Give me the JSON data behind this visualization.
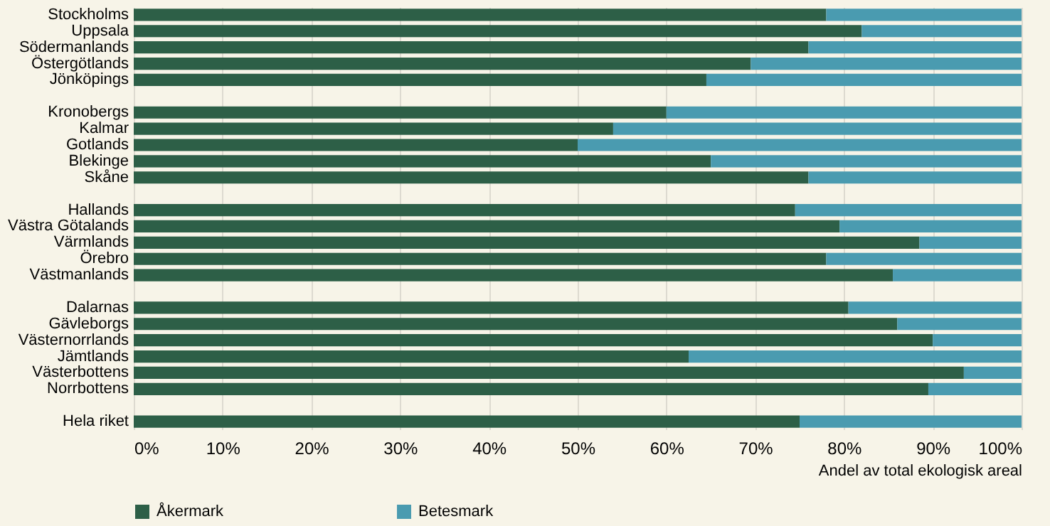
{
  "chart_data": {
    "type": "bar",
    "orientation": "horizontal",
    "stacked": true,
    "xlabel": "Andel av total ekologisk areal",
    "categories": [
      "Stockholms",
      "Uppsala",
      "Södermanlands",
      "Östergötlands",
      "Jönköpings",
      null,
      "Kronobergs",
      "Kalmar",
      "Gotlands",
      "Blekinge",
      "Skåne",
      null,
      "Hallands",
      "Västra Götalands",
      "Värmlands",
      "Örebro",
      "Västmanlands",
      null,
      "Dalarnas",
      "Gävleborgs",
      "Västernorrlands",
      "Jämtlands",
      "Västerbottens",
      "Norrbottens",
      null,
      "Hela riket"
    ],
    "series": [
      {
        "name": "Åkermark",
        "color": "#2d5f47",
        "values": [
          78,
          82,
          76,
          69.5,
          64.5,
          null,
          60,
          54,
          50,
          65,
          76,
          null,
          74.5,
          79.5,
          88.5,
          78,
          85.5,
          null,
          80.5,
          86,
          90,
          62.5,
          93.5,
          89.5,
          null,
          75
        ]
      },
      {
        "name": "Betesmark",
        "color": "#4a9bb0",
        "values": [
          22,
          18,
          24,
          30.5,
          35.5,
          null,
          40,
          46,
          50,
          35,
          24,
          null,
          25.5,
          20.5,
          11.5,
          22,
          14.5,
          null,
          19.5,
          14,
          10,
          37.5,
          6.5,
          10.5,
          null,
          25
        ]
      }
    ],
    "xlim": [
      0,
      100
    ],
    "xticks": [
      {
        "value": 0,
        "label": "0%"
      },
      {
        "value": 10,
        "label": "10%"
      },
      {
        "value": 20,
        "label": "20%"
      },
      {
        "value": 30,
        "label": "30%"
      },
      {
        "value": 40,
        "label": "40%"
      },
      {
        "value": 50,
        "label": "50%"
      },
      {
        "value": 60,
        "label": "60%"
      },
      {
        "value": 70,
        "label": "70%"
      },
      {
        "value": 80,
        "label": "80%"
      },
      {
        "value": 90,
        "label": "90%"
      },
      {
        "value": 100,
        "label": "100%"
      }
    ],
    "grid": "x",
    "legend": "bottom"
  }
}
